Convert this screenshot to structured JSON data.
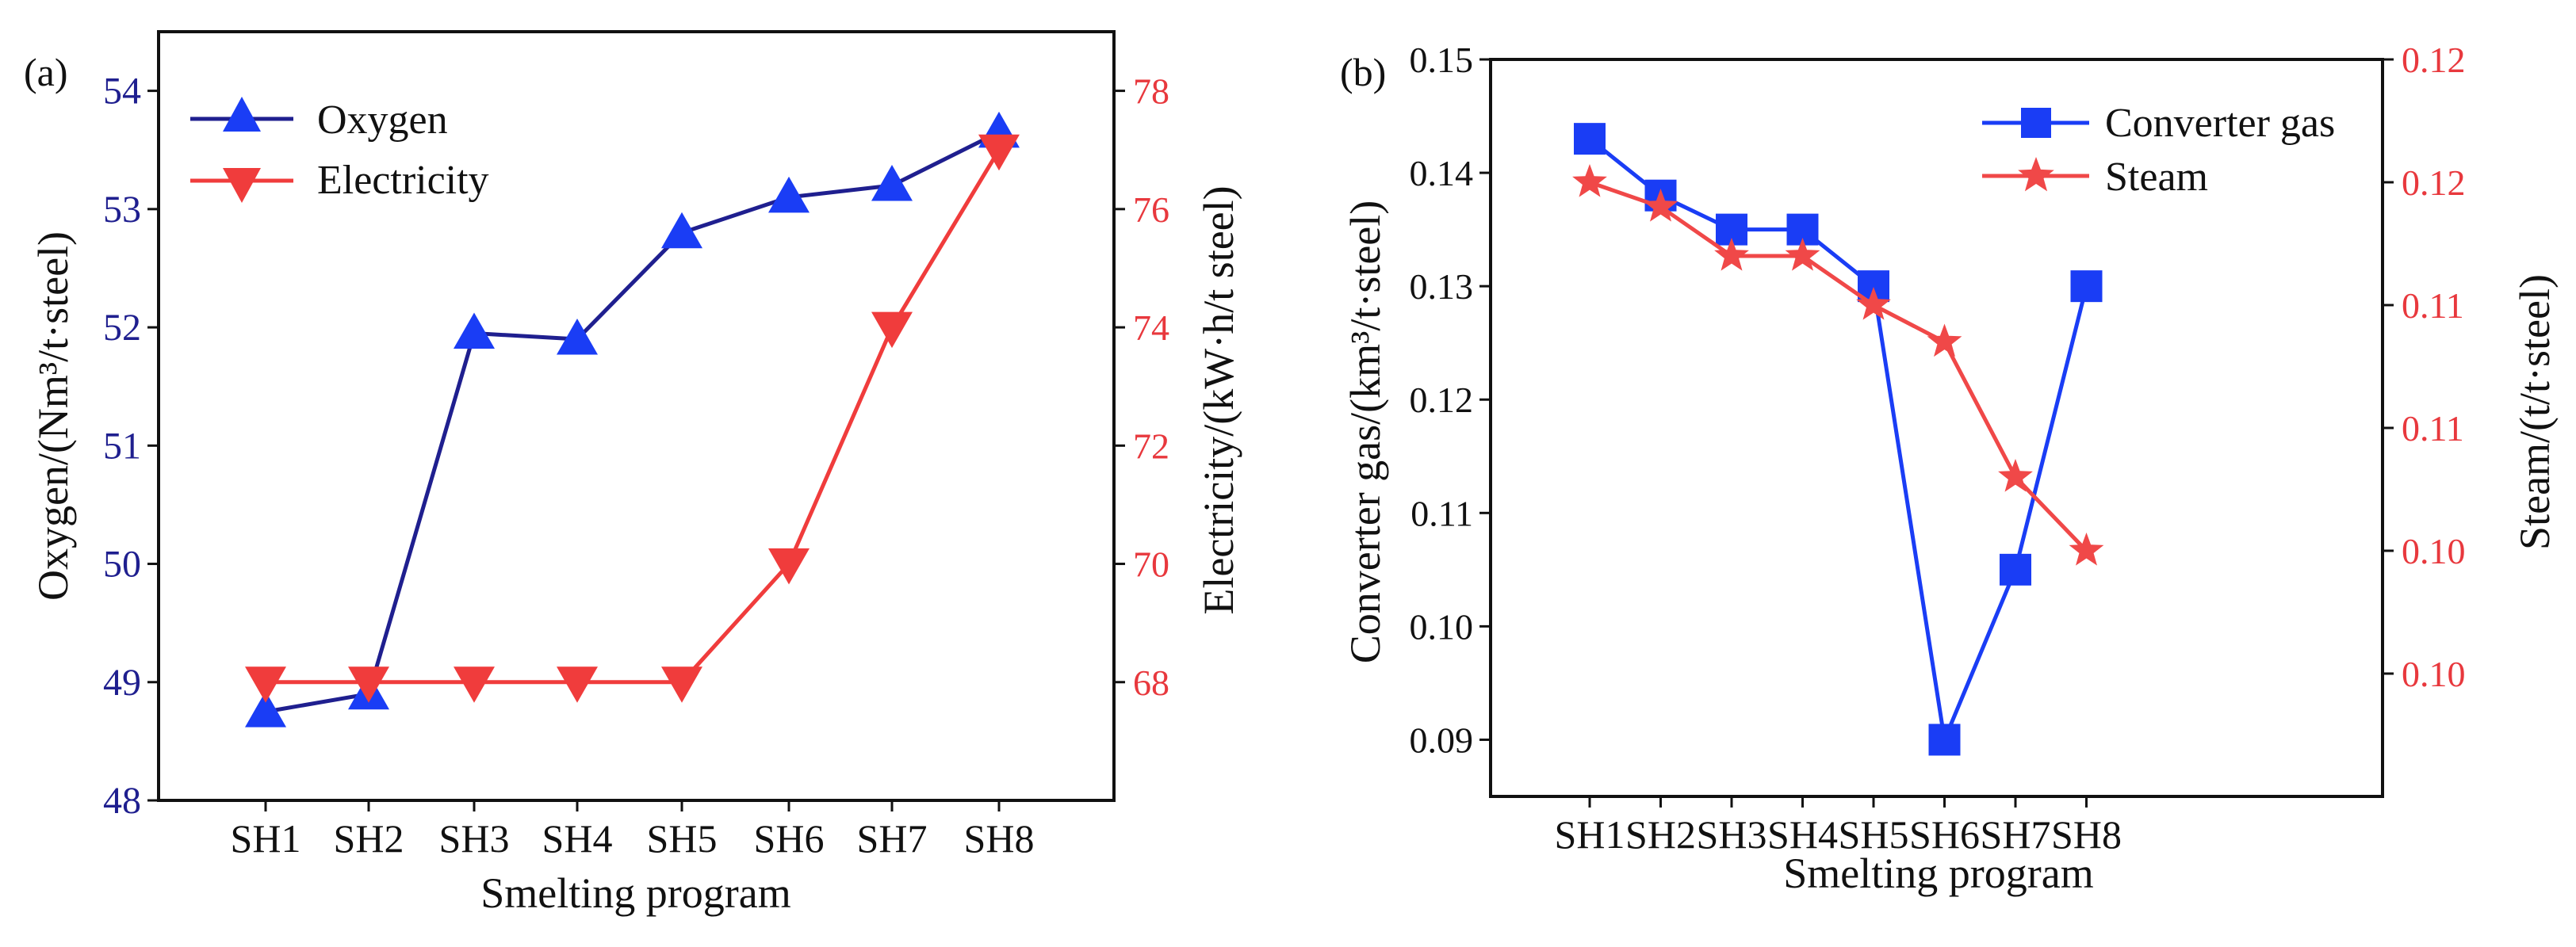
{
  "chart_data": [
    {
      "panel_label": "(a)",
      "type": "line",
      "categories": [
        "SH1",
        "SH2",
        "SH3",
        "SH4",
        "SH5",
        "SH6",
        "SH7",
        "SH8"
      ],
      "xlabel": "Smelting program",
      "left_axis": {
        "label": "Oxygen/(Nm³/t·steel)",
        "ylim": [
          48,
          54.5
        ],
        "ticks": [
          "48",
          "49",
          "50",
          "51",
          "52",
          "53",
          "54"
        ],
        "color": "#1f1f8f"
      },
      "right_axis": {
        "label": "Electricity/(kW·h/t steel)",
        "ylim": [
          66,
          79
        ],
        "ticks": [
          "68",
          "70",
          "72",
          "74",
          "76",
          "78"
        ],
        "color": "#e8383d"
      },
      "series": [
        {
          "name": "Oxygen",
          "axis": "left",
          "marker": "triangle-up",
          "color": "#1f1f8f",
          "marker_color": "#1a3df5",
          "values": [
            48.75,
            48.9,
            51.95,
            51.9,
            52.8,
            53.1,
            53.2,
            53.65
          ]
        },
        {
          "name": "Electricity",
          "axis": "right",
          "marker": "triangle-down",
          "color": "#f03c3c",
          "marker_color": "#f03c3c",
          "values": [
            68,
            68,
            68,
            68,
            68,
            70,
            74,
            77
          ]
        }
      ],
      "legend_position": "top-left"
    },
    {
      "panel_label": "(b)",
      "type": "line",
      "categories": [
        "SH1",
        "SH2",
        "SH3",
        "SH4",
        "SH5",
        "SH6",
        "SH7",
        "SH8"
      ],
      "xlabel": "Smelting program",
      "left_axis": {
        "label": "Converter gas/(km³/t·steel)",
        "ylim": [
          0.085,
          0.15
        ],
        "ticks": [
          "0.09",
          "0.10",
          "0.11",
          "0.12",
          "0.13",
          "0.14",
          "0.15"
        ],
        "color": "#111111"
      },
      "right_axis": {
        "label": "Steam/(t/t·steel)",
        "ylim": [
          0.0925,
          0.1225
        ],
        "ticks": [
          "0.10",
          "0.10",
          "0.11",
          "0.11",
          "0.12",
          "0.12"
        ],
        "color": "#e8383d"
      },
      "series": [
        {
          "name": "Converter gas",
          "axis": "left",
          "marker": "square",
          "color": "#1a3df5",
          "marker_color": "#1a3df5",
          "values": [
            0.143,
            0.138,
            0.135,
            0.135,
            0.13,
            0.09,
            0.105,
            0.13
          ]
        },
        {
          "name": "Steam",
          "axis": "right",
          "marker": "star",
          "color": "#f04848",
          "marker_color": "#f04848",
          "values": [
            0.1175,
            0.1165,
            0.1145,
            0.1145,
            0.1125,
            0.111,
            0.1055,
            0.1025
          ]
        }
      ],
      "legend_position": "top-right"
    }
  ]
}
